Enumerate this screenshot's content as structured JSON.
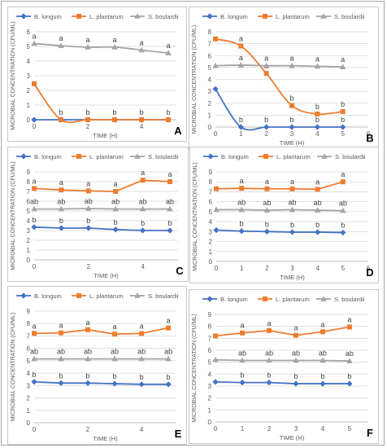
{
  "legend": {
    "b_longum": "B. longum",
    "l_plantarum": "L. plantarum",
    "s_boulardii": "S. boulardii"
  },
  "colors": {
    "b_longum": "#4472c4",
    "l_plantarum": "#ed7d31",
    "s_boulardii": "#a5a5a5"
  },
  "chart_data": [
    {
      "type": "line",
      "panel": "A",
      "xlabel": "TIME (H)",
      "ylabel": "MICROBIAL CONCENTRATION (CFU/ML)",
      "ylim": [
        0,
        6
      ],
      "yticks": [
        0,
        1,
        2,
        3,
        4,
        5,
        6
      ],
      "xticks": [
        "0",
        "2",
        "4"
      ],
      "xticks_at": [
        0,
        2,
        4
      ],
      "xlim": [
        0,
        5.3
      ],
      "smooth": true,
      "series": [
        {
          "name": "B. longum",
          "x": [
            0,
            1,
            2,
            3,
            4,
            5
          ],
          "y": [
            0,
            0,
            0,
            0,
            0,
            0
          ],
          "labels": []
        },
        {
          "name": "L. plantarum",
          "x": [
            0,
            1,
            2,
            3,
            4,
            5
          ],
          "y": [
            2.45,
            0,
            0,
            0,
            0,
            0
          ],
          "labels": [
            "",
            "b",
            "b",
            "b",
            "b",
            "b"
          ]
        },
        {
          "name": "S. boulardii",
          "x": [
            0,
            1,
            2,
            3,
            4,
            5
          ],
          "y": [
            5.2,
            5.05,
            4.95,
            4.95,
            4.75,
            4.55
          ],
          "labels": [
            "a",
            "a",
            "a",
            "a",
            "a",
            "a"
          ]
        }
      ]
    },
    {
      "type": "line",
      "panel": "B",
      "xlabel": "TIME (H)",
      "ylabel": "MICROBIAL CONCENTRATION (CFU/ML)",
      "ylim": [
        0,
        8
      ],
      "yticks": [
        0,
        1,
        2,
        3,
        4,
        5,
        6,
        7,
        8
      ],
      "xticks": [
        "0",
        "1",
        "2",
        "3",
        "4",
        "5",
        "6"
      ],
      "xticks_at": [
        0,
        1,
        2,
        3,
        4,
        5,
        6
      ],
      "xlim": [
        0,
        6
      ],
      "smooth": true,
      "series": [
        {
          "name": "B. longum",
          "x": [
            0,
            1,
            2,
            3,
            4,
            5
          ],
          "y": [
            3.2,
            0,
            0,
            0,
            0,
            0
          ],
          "labels": [
            "",
            "b",
            "b",
            "b",
            "b",
            "b"
          ]
        },
        {
          "name": "L. plantarum",
          "x": [
            0,
            1,
            2,
            3,
            4,
            5
          ],
          "y": [
            7.4,
            6.8,
            4.5,
            1.8,
            1.1,
            1.3
          ],
          "labels": [
            "",
            "a",
            "a",
            "b",
            "b",
            "b"
          ]
        },
        {
          "name": "S. boulardii",
          "x": [
            0,
            1,
            2,
            3,
            4,
            5
          ],
          "y": [
            5.15,
            5.2,
            5.15,
            5.15,
            5.1,
            5.05
          ],
          "labels": [
            "",
            "a",
            "a",
            "a",
            "a",
            "a"
          ]
        }
      ]
    },
    {
      "type": "line",
      "panel": "C",
      "xlabel": "TIME (H)",
      "ylabel": "MICROBIAL CONCENTRATION (CFU/ML)",
      "ylim": [
        0,
        9
      ],
      "yticks": [
        0,
        1,
        2,
        3,
        4,
        5,
        6,
        7,
        8,
        9
      ],
      "xticks": [
        "0",
        "2",
        "4"
      ],
      "xticks_at": [
        0,
        2,
        4
      ],
      "xlim": [
        0,
        5.3
      ],
      "smooth": false,
      "series": [
        {
          "name": "B. longum",
          "x": [
            0,
            1,
            2,
            3,
            4,
            5
          ],
          "y": [
            3.35,
            3.25,
            3.25,
            3.1,
            3.0,
            3.0
          ],
          "labels": [
            "b",
            "b",
            "b",
            "b",
            "b",
            "b"
          ]
        },
        {
          "name": "L. plantarum",
          "x": [
            0,
            1,
            2,
            3,
            4,
            5
          ],
          "y": [
            7.3,
            7.15,
            7.05,
            7.0,
            8.15,
            8.0
          ],
          "labels": [
            "a",
            "a",
            "a",
            "a",
            "a",
            "a"
          ]
        },
        {
          "name": "S. boulardii",
          "x": [
            0,
            1,
            2,
            3,
            4,
            5
          ],
          "y": [
            5.2,
            5.2,
            5.25,
            5.2,
            5.2,
            5.2
          ],
          "labels": [
            "ab",
            "ab",
            "ab",
            "ab",
            "ab",
            "ab"
          ]
        }
      ]
    },
    {
      "type": "line",
      "panel": "D",
      "xlabel": "TIME (H)",
      "ylabel": "MICROBIAL CONCENTRATION (CFU/ML)",
      "ylim": [
        0,
        9
      ],
      "yticks": [
        0,
        1,
        2,
        3,
        4,
        5,
        6,
        7,
        8,
        9
      ],
      "xticks": [
        "0",
        "1",
        "2",
        "3",
        "4",
        "5",
        "6"
      ],
      "xticks_at": [
        0,
        1,
        2,
        3,
        4,
        5,
        6
      ],
      "xlim": [
        0,
        6
      ],
      "smooth": false,
      "series": [
        {
          "name": "B. longum",
          "x": [
            0,
            1,
            2,
            3,
            4,
            5
          ],
          "y": [
            3.15,
            3.05,
            3.0,
            2.95,
            2.95,
            2.9
          ],
          "labels": [
            "",
            "b",
            "b",
            "b",
            "b",
            "b"
          ]
        },
        {
          "name": "L. plantarum",
          "x": [
            0,
            1,
            2,
            3,
            4,
            5
          ],
          "y": [
            7.3,
            7.35,
            7.3,
            7.3,
            7.25,
            8.0
          ],
          "labels": [
            "",
            "a",
            "a",
            "a",
            "a",
            "a"
          ]
        },
        {
          "name": "S. boulardii",
          "x": [
            0,
            1,
            2,
            3,
            4,
            5
          ],
          "y": [
            5.2,
            5.2,
            5.15,
            5.2,
            5.15,
            5.1
          ],
          "labels": [
            "",
            "ab",
            "ab",
            "ab",
            "ab",
            "ab"
          ]
        }
      ]
    },
    {
      "type": "line",
      "panel": "E",
      "xlabel": "TIME (H)",
      "ylabel": "MICROBIAL CONCENTRATION (CFU/ML)",
      "ylim": [
        0,
        9
      ],
      "yticks": [
        0,
        1,
        2,
        3,
        4,
        5,
        6,
        7,
        8,
        9
      ],
      "xticks": [
        "0",
        "2",
        "4"
      ],
      "xticks_at": [
        0,
        2,
        4
      ],
      "xlim": [
        0,
        5.3
      ],
      "smooth": false,
      "series": [
        {
          "name": "B. longum",
          "x": [
            0,
            1,
            2,
            3,
            4,
            5
          ],
          "y": [
            3.3,
            3.2,
            3.2,
            3.15,
            3.1,
            3.1
          ],
          "labels": [
            "b",
            "b",
            "b",
            "b",
            "b",
            "b"
          ]
        },
        {
          "name": "L. plantarum",
          "x": [
            0,
            1,
            2,
            3,
            4,
            5
          ],
          "y": [
            7.2,
            7.25,
            7.5,
            7.15,
            7.2,
            7.65
          ],
          "labels": [
            "a",
            "a",
            "a",
            "a",
            "a",
            "a"
          ]
        },
        {
          "name": "S. boulardii",
          "x": [
            0,
            1,
            2,
            3,
            4,
            5
          ],
          "y": [
            5.15,
            5.15,
            5.15,
            5.15,
            5.15,
            5.15
          ],
          "labels": [
            "ab",
            "ab",
            "ab",
            "ab",
            "ab",
            "ab"
          ]
        }
      ]
    },
    {
      "type": "line",
      "panel": "F",
      "xlabel": "TIME (H)",
      "ylabel": "MICROBIAL CONCENTRATION (CFU/ML)",
      "ylim": [
        0,
        9
      ],
      "yticks": [
        0,
        1,
        2,
        3,
        4,
        5,
        6,
        7,
        8,
        9
      ],
      "xticks": [
        "0",
        "1",
        "2",
        "3",
        "4",
        "5"
      ],
      "xticks_at": [
        0,
        1,
        2,
        3,
        4,
        5
      ],
      "xlim": [
        0,
        5.7
      ],
      "smooth": false,
      "series": [
        {
          "name": "B. longum",
          "x": [
            0,
            1,
            2,
            3,
            4,
            5
          ],
          "y": [
            3.35,
            3.3,
            3.3,
            3.2,
            3.2,
            3.2
          ],
          "labels": [
            "",
            "b",
            "b",
            "b",
            "b",
            "b"
          ]
        },
        {
          "name": "L. plantarum",
          "x": [
            0,
            1,
            2,
            3,
            4,
            5
          ],
          "y": [
            7.2,
            7.45,
            7.65,
            7.25,
            7.55,
            7.95
          ],
          "labels": [
            "",
            "a",
            "a",
            "a",
            "a",
            "a"
          ]
        },
        {
          "name": "S. boulardii",
          "x": [
            0,
            1,
            2,
            3,
            4,
            5
          ],
          "y": [
            5.2,
            5.15,
            5.15,
            5.15,
            5.15,
            5.1
          ],
          "labels": [
            "",
            "ab",
            "ab",
            "ab",
            "ab",
            "ab"
          ]
        }
      ]
    }
  ]
}
